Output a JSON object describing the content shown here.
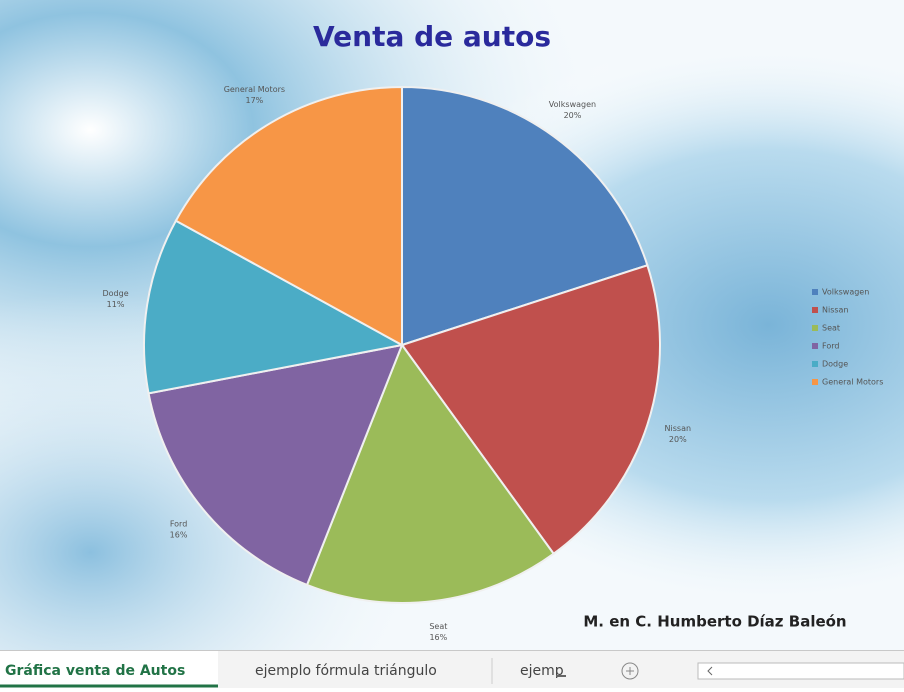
{
  "chart_data": {
    "type": "pie",
    "title": "Venta de autos",
    "categories": [
      "Volkswagen",
      "Nissan",
      "Seat",
      "Ford",
      "Dodge",
      "General Motors"
    ],
    "values": [
      20,
      20,
      16,
      16,
      11,
      17
    ],
    "value_labels": [
      "20%",
      "20%",
      "16%",
      "16%",
      "11%",
      "17%"
    ],
    "colors": [
      "#4f81bd",
      "#c0504d",
      "#9bbb59",
      "#8064a2",
      "#4bacc6",
      "#f79646"
    ],
    "legend": "right",
    "annotations": [
      "M. en C. Humberto Díaz Baleón"
    ]
  },
  "sheet_tabs": [
    "Gráfica venta de Autos",
    "ejemplo fórmula triángulo",
    "ejemp"
  ]
}
